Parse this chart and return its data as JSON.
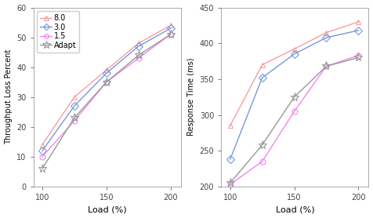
{
  "load": [
    100,
    125,
    150,
    175,
    200
  ],
  "throughput_loss": {
    "8.0": [
      14,
      30,
      39,
      48,
      54
    ],
    "3.0": [
      12,
      27,
      38,
      47,
      53
    ],
    "1.5": [
      10,
      22,
      35,
      43,
      51
    ],
    "Adapt": [
      6,
      23,
      35,
      44,
      51
    ]
  },
  "response_time": {
    "8.0": [
      285,
      370,
      392,
      415,
      430
    ],
    "3.0": [
      238,
      352,
      385,
      408,
      418
    ],
    "1.5": [
      203,
      235,
      305,
      368,
      383
    ],
    "Adapt": [
      205,
      258,
      325,
      368,
      380
    ]
  },
  "colors": {
    "8.0": "#f4a0a0",
    "3.0": "#7799dd",
    "1.5": "#ee88ee",
    "Adapt": "#999999"
  },
  "markers": {
    "8.0": "^",
    "3.0": "D",
    "1.5": "o",
    "Adapt": "*"
  },
  "marker_sizes": {
    "8.0": 5,
    "3.0": 5,
    "1.5": 5,
    "Adapt": 8
  },
  "ylim_left": [
    0,
    60
  ],
  "ylim_right": [
    200,
    450
  ],
  "yticks_left": [
    0,
    10,
    20,
    30,
    40,
    50,
    60
  ],
  "yticks_right": [
    200,
    250,
    300,
    350,
    400,
    450
  ],
  "xticks": [
    100,
    150,
    200
  ],
  "xlim": [
    93,
    208
  ],
  "xlabel": "Load (%)",
  "ylabel_left": "Throughput Loss Percent",
  "ylabel_right": "Response Time (ms)",
  "legend_labels": [
    "8.0",
    "3.0",
    "1.5",
    "Adapt"
  ],
  "background_color": "#ffffff",
  "linewidth": 1.0,
  "tick_fontsize": 7,
  "label_fontsize": 8,
  "legend_fontsize": 7
}
